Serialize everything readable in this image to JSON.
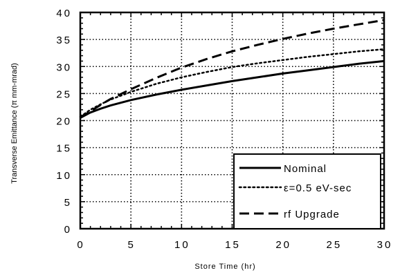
{
  "chart_data": {
    "type": "line",
    "title": "",
    "xlabel": "Store Time (hr)",
    "ylabel": "Transverse Emittance (π mm-mrad)",
    "xlim": [
      0,
      30
    ],
    "ylim": [
      0,
      40
    ],
    "x_ticks": [
      "0",
      "5",
      "10",
      "15",
      "20",
      "25",
      "30"
    ],
    "y_ticks": [
      "0",
      "5",
      "10",
      "15",
      "20",
      "25",
      "30",
      "35",
      "40"
    ],
    "grid": true,
    "legend_position": "bottom-right",
    "series": [
      {
        "name": "Nominal",
        "style": "solid",
        "x": [
          0,
          1,
          2,
          3,
          5,
          7.5,
          10,
          12.5,
          15,
          17.5,
          20,
          22.5,
          25,
          27.5,
          30
        ],
        "y": [
          20.5,
          21.5,
          22.2,
          22.8,
          23.8,
          24.8,
          25.7,
          26.5,
          27.3,
          28.0,
          28.7,
          29.3,
          29.9,
          30.5,
          31.0
        ]
      },
      {
        "name": "ε=0.5 eV-sec",
        "style": "dotted",
        "x": [
          0,
          1,
          2,
          3,
          5,
          7.5,
          10,
          12.5,
          15,
          17.5,
          20,
          22.5,
          25,
          27.5,
          30
        ],
        "y": [
          20.7,
          22.0,
          23.0,
          23.9,
          25.3,
          26.8,
          28.0,
          29.0,
          29.9,
          30.6,
          31.2,
          31.8,
          32.3,
          32.8,
          33.2
        ]
      },
      {
        "name": "rf Upgrade",
        "style": "dashed",
        "x": [
          0,
          1,
          2,
          3,
          5,
          7.5,
          10,
          12.5,
          15,
          17.5,
          20,
          22.5,
          25,
          27.5,
          30
        ],
        "y": [
          20.6,
          21.7,
          22.9,
          24.0,
          25.8,
          27.9,
          29.8,
          31.4,
          32.8,
          34.0,
          35.1,
          36.1,
          37.0,
          37.8,
          38.6
        ]
      }
    ]
  }
}
